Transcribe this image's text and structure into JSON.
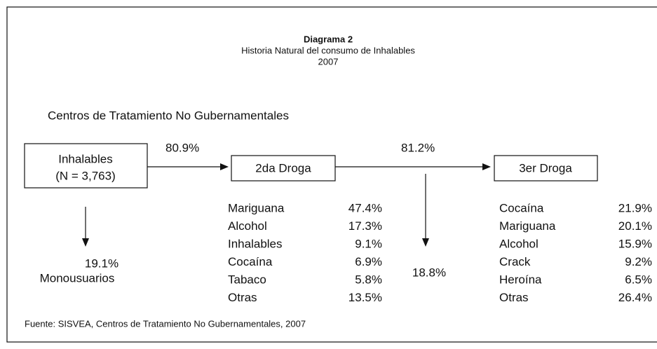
{
  "header": {
    "title": "Diagrama 2",
    "subtitle": "Historia Natural del consumo de Inhalables",
    "year": "2007"
  },
  "section": "Centros de Tratamiento No Gubernamentales",
  "nodes": [
    {
      "lines": [
        "Inhalables",
        "(N = 3,763)"
      ]
    },
    {
      "lines": [
        "2da Droga"
      ]
    },
    {
      "lines": [
        "3er Droga"
      ]
    }
  ],
  "edges": [
    {
      "label": "80.9%"
    },
    {
      "label": "81.2%"
    }
  ],
  "exits": [
    {
      "value": "19.1%",
      "label": "Monousuarios"
    },
    {
      "value": "18.8%"
    }
  ],
  "lists": [
    {
      "items": [
        [
          "Mariguana",
          "47.4%"
        ],
        [
          "Alcohol",
          "17.3%"
        ],
        [
          "Inhalables",
          "9.1%"
        ],
        [
          "Cocaína",
          "6.9%"
        ],
        [
          "Tabaco",
          "5.8%"
        ],
        [
          "Otras",
          "13.5%"
        ]
      ]
    },
    {
      "items": [
        [
          "Cocaína",
          "21.9%"
        ],
        [
          "Mariguana",
          "20.1%"
        ],
        [
          "Alcohol",
          "15.9%"
        ],
        [
          "Crack",
          "9.2%"
        ],
        [
          "Heroína",
          "6.5%"
        ],
        [
          "Otras",
          "26.4%"
        ]
      ]
    }
  ],
  "footer": "Fuente: SISVEA, Centros de Tratamiento No Gubernamentales, 2007"
}
